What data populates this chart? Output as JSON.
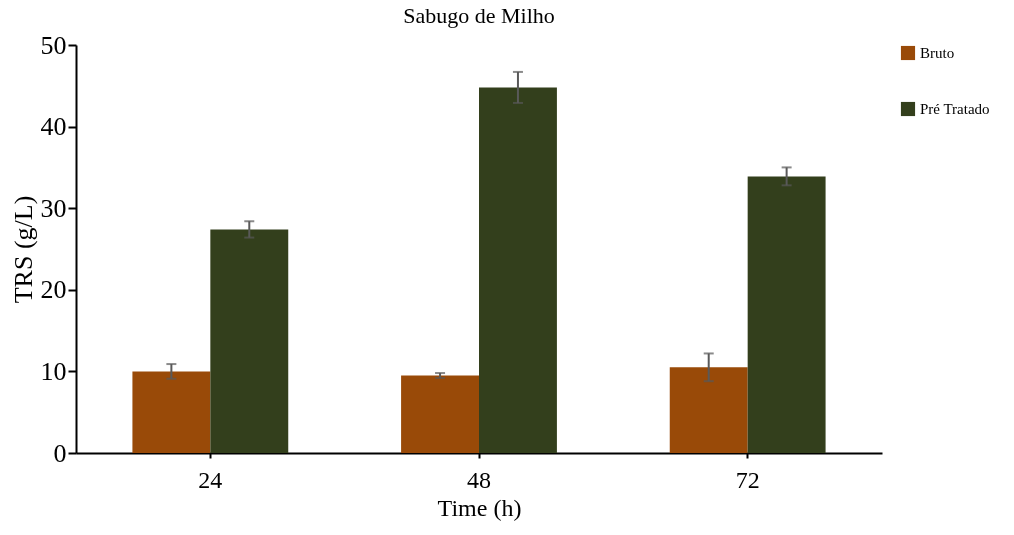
{
  "chart_data": {
    "type": "bar",
    "title": "Sabugo de Milho",
    "xlabel": "Time (h)",
    "ylabel": "TRS (g/L)",
    "categories": [
      "24",
      "48",
      "72"
    ],
    "series": [
      {
        "name": "Bruto",
        "color": "#994a08",
        "values": [
          10.0,
          9.5,
          10.5
        ],
        "errors": [
          0.9,
          0.3,
          1.7
        ]
      },
      {
        "name": "Pré Tratado",
        "color": "#333f1c",
        "values": [
          27.4,
          44.8,
          33.9
        ],
        "errors": [
          1.0,
          1.9,
          1.1
        ]
      }
    ],
    "ylim": [
      0,
      50
    ],
    "yticks": [
      0,
      10,
      20,
      30,
      40,
      50
    ],
    "grid": false,
    "legend": "right"
  }
}
